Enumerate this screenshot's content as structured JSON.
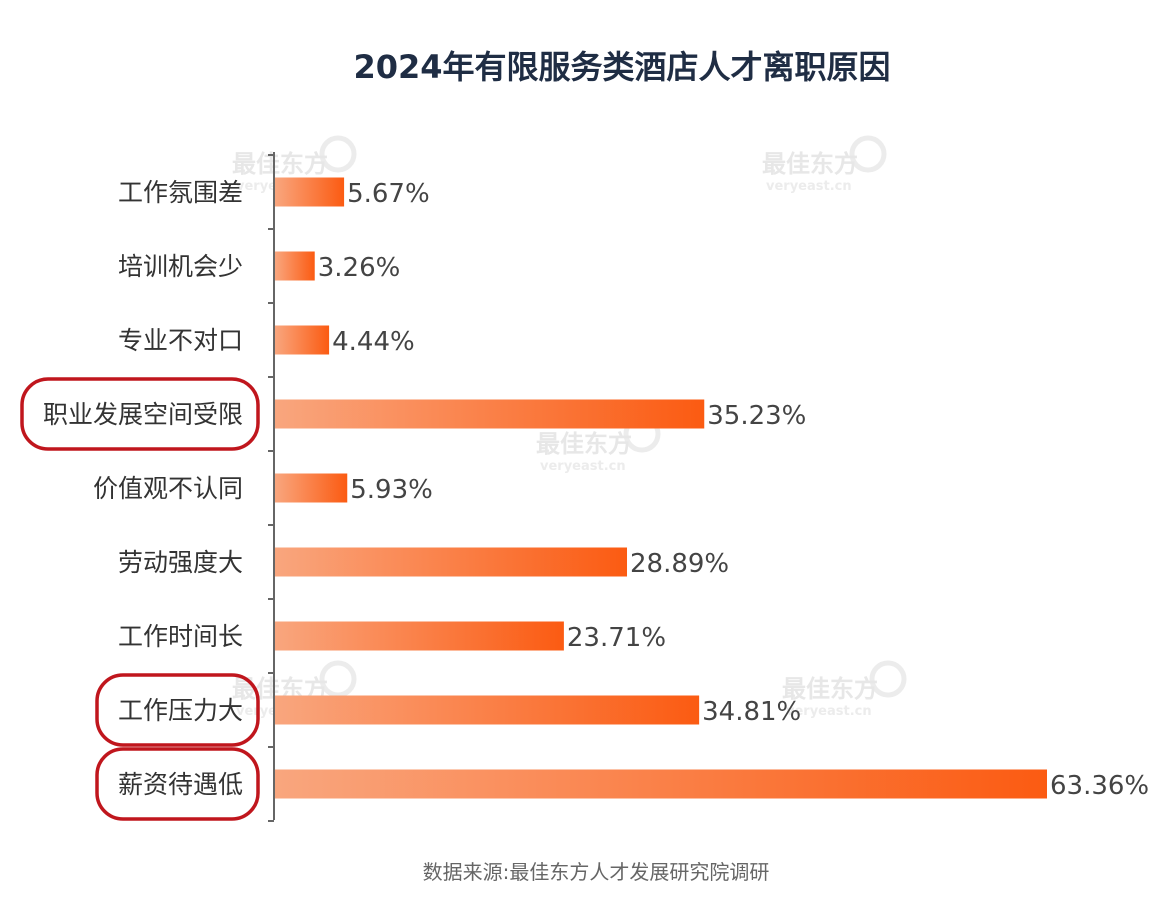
{
  "chart_data": {
    "type": "bar",
    "orientation": "horizontal",
    "title": "2024年有限服务类酒店人才离职原因",
    "source": "数据来源:最佳东方人才发展研究院调研",
    "categories": [
      "工作氛围差",
      "培训机会少",
      "专业不对口",
      "职业发展空间受限",
      "价值观不认同",
      "劳动强度大",
      "工作时间长",
      "工作压力大",
      "薪资待遇低"
    ],
    "values": [
      5.67,
      3.26,
      4.44,
      35.23,
      5.93,
      28.89,
      23.71,
      34.81,
      63.36
    ],
    "value_labels": [
      "5.67%",
      "3.26%",
      "4.44%",
      "35.23%",
      "5.93%",
      "28.89%",
      "23.71%",
      "34.81%",
      "63.36%"
    ],
    "highlighted_categories": [
      "职业发展空间受限",
      "工作压力大",
      "薪资待遇低"
    ],
    "xlim": [
      0,
      63.36
    ],
    "grid": false,
    "legend": "none"
  },
  "watermark": {
    "brand": "最佳东方",
    "site": "veryeast.cn"
  },
  "colors": {
    "title": "#1f2d44",
    "label": "#333333",
    "value_label": "#444444",
    "bar_start": "#f9a67e",
    "bar_end": "#fb5b12",
    "highlight_border": "#c0161d",
    "axis": "#666666",
    "source": "#666666"
  }
}
